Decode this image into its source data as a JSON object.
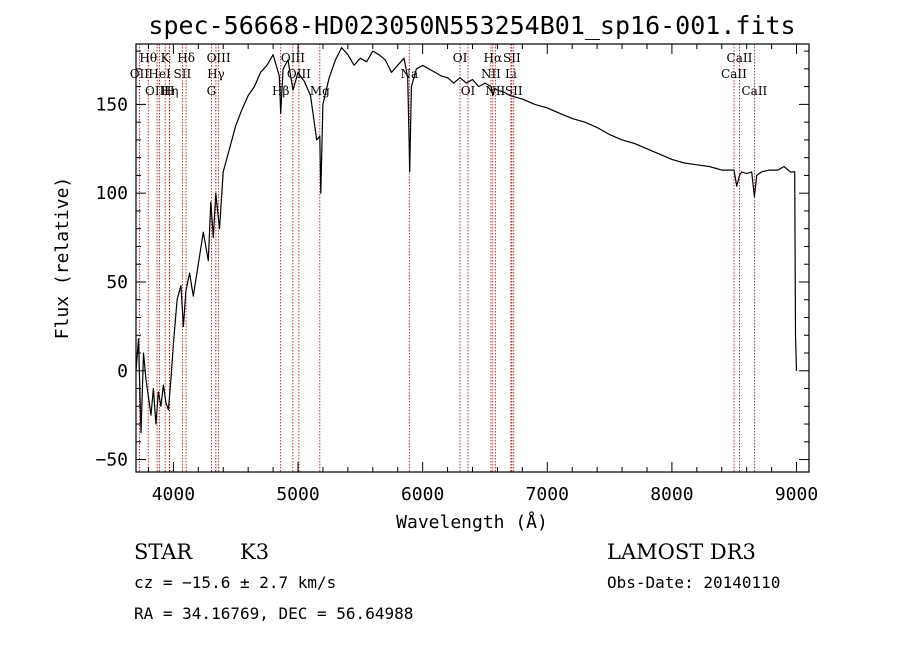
{
  "chart_data": {
    "type": "line",
    "title": "spec-56668-HD023050N553254B01_sp16-001.fits",
    "xlabel": "Wavelength (Å)",
    "ylabel": "Flux (relative)",
    "xlim": [
      3700,
      9100
    ],
    "ylim": [
      -57,
      184
    ],
    "x_ticks": [
      4000,
      5000,
      6000,
      7000,
      8000,
      9000
    ],
    "y_ticks": [
      -50,
      0,
      50,
      100,
      150
    ],
    "series": [
      {
        "name": "flux",
        "x": [
          3700,
          3720,
          3740,
          3760,
          3780,
          3800,
          3820,
          3840,
          3860,
          3880,
          3900,
          3920,
          3940,
          3960,
          3980,
          4000,
          4030,
          4060,
          4080,
          4100,
          4130,
          4160,
          4200,
          4240,
          4280,
          4300,
          4320,
          4340,
          4370,
          4400,
          4450,
          4500,
          4550,
          4600,
          4650,
          4700,
          4750,
          4800,
          4850,
          4861,
          4880,
          4920,
          4960,
          5000,
          5050,
          5100,
          5150,
          5175,
          5183,
          5200,
          5250,
          5300,
          5350,
          5400,
          5450,
          5500,
          5550,
          5600,
          5650,
          5700,
          5750,
          5800,
          5850,
          5880,
          5890,
          5896,
          5910,
          5950,
          6000,
          6050,
          6100,
          6150,
          6200,
          6250,
          6300,
          6350,
          6400,
          6450,
          6500,
          6550,
          6563,
          6580,
          6600,
          6650,
          6700,
          6750,
          6800,
          6900,
          7000,
          7100,
          7200,
          7300,
          7400,
          7500,
          7600,
          7700,
          7800,
          7900,
          8000,
          8100,
          8200,
          8300,
          8400,
          8498,
          8520,
          8542,
          8560,
          8600,
          8640,
          8662,
          8680,
          8720,
          8780,
          8850,
          8900,
          8950,
          8985,
          8992,
          9000
        ],
        "y": [
          0,
          18,
          -35,
          10,
          -5,
          -15,
          -25,
          -10,
          -30,
          -12,
          -20,
          -8,
          -18,
          -22,
          -5,
          15,
          40,
          48,
          25,
          45,
          55,
          42,
          60,
          78,
          62,
          95,
          75,
          100,
          80,
          112,
          125,
          138,
          147,
          155,
          160,
          168,
          172,
          178,
          166,
          145,
          170,
          175,
          158,
          168,
          163,
          155,
          130,
          132,
          100,
          150,
          165,
          175,
          182,
          178,
          172,
          176,
          174,
          180,
          178,
          175,
          168,
          172,
          176,
          165,
          135,
          112,
          160,
          170,
          172,
          170,
          168,
          166,
          165,
          162,
          165,
          162,
          164,
          160,
          162,
          160,
          155,
          159,
          158,
          157,
          155,
          154,
          153,
          150,
          148,
          145,
          142,
          140,
          137,
          133,
          130,
          128,
          125,
          122,
          119,
          117,
          116,
          115,
          113,
          113,
          104,
          110,
          112,
          111,
          112,
          98,
          110,
          112,
          113,
          113,
          115,
          112,
          112,
          20,
          0
        ]
      }
    ],
    "spectral_lines": [
      {
        "label": "Hθ",
        "x": 3798,
        "row": 1
      },
      {
        "label": "OII",
        "x": 3727,
        "row": 2
      },
      {
        "label": "OIII",
        "x": 3869,
        "row": 3
      },
      {
        "label": "HeI",
        "x": 3889,
        "row": 2
      },
      {
        "label": "K",
        "x": 3934,
        "row": 1
      },
      {
        "label": "Hη",
        "x": 3970,
        "row": 3
      },
      {
        "label": "H",
        "x": 3968,
        "row": 3
      },
      {
        "label": "SII",
        "x": 4072,
        "row": 2
      },
      {
        "label": "Hδ",
        "x": 4102,
        "row": 1
      },
      {
        "label": "OIII",
        "x": 4363,
        "row": 1
      },
      {
        "label": "Hγ",
        "x": 4341,
        "row": 2
      },
      {
        "label": "G",
        "x": 4305,
        "row": 3
      },
      {
        "label": "Hβ",
        "x": 4861,
        "row": 3
      },
      {
        "label": "OIII",
        "x": 4959,
        "row": 1
      },
      {
        "label": "OIII",
        "x": 5007,
        "row": 2
      },
      {
        "label": "Mg",
        "x": 5175,
        "row": 3
      },
      {
        "label": "Na",
        "x": 5893,
        "row": 2
      },
      {
        "label": "OI",
        "x": 6300,
        "row": 1
      },
      {
        "label": "OI",
        "x": 6364,
        "row": 3
      },
      {
        "label": "Hα",
        "x": 6563,
        "row": 1
      },
      {
        "label": "NII",
        "x": 6548,
        "row": 2
      },
      {
        "label": "NII",
        "x": 6583,
        "row": 3
      },
      {
        "label": "SII",
        "x": 6716,
        "row": 1
      },
      {
        "label": "Li",
        "x": 6708,
        "row": 2
      },
      {
        "label": "SII",
        "x": 6731,
        "row": 3
      },
      {
        "label": "CaII",
        "x": 8498,
        "row": 2
      },
      {
        "label": "CaII",
        "x": 8542,
        "row": 1
      },
      {
        "label": "CaII",
        "x": 8662,
        "row": 3
      }
    ]
  },
  "info": {
    "class_label": "STAR",
    "subclass": "K3",
    "cz_line": "cz = −15.6 ± 2.7 km/s",
    "radec_line": "RA =  34.16769, DEC =  56.64988",
    "survey": "LAMOST DR3",
    "obs_date_line": "Obs-Date: 20140110"
  }
}
